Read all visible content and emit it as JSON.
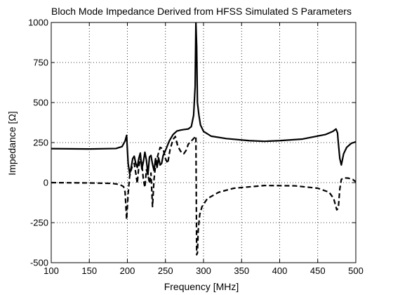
{
  "chart_data": {
    "type": "line",
    "title": "Bloch Mode Impedance Derived from HFSS Simulated S Parameters",
    "xlabel": "Frequency [MHz]",
    "ylabel": "Impedance [Ω]",
    "xlim": [
      100,
      500
    ],
    "ylim": [
      -500,
      1000
    ],
    "xticks": [
      100,
      150,
      200,
      250,
      300,
      350,
      400,
      450,
      500
    ],
    "yticks": [
      -500,
      -250,
      0,
      250,
      500,
      750,
      1000
    ],
    "grid": "dotted",
    "series": [
      {
        "style": "solid",
        "color": "#000000",
        "points": [
          [
            100,
            212
          ],
          [
            150,
            210
          ],
          [
            185,
            213
          ],
          [
            193,
            225
          ],
          [
            197,
            260
          ],
          [
            199,
            295
          ],
          [
            201,
            120
          ],
          [
            203,
            55
          ],
          [
            205,
            95
          ],
          [
            207,
            150
          ],
          [
            209,
            165
          ],
          [
            211,
            120
          ],
          [
            213,
            95
          ],
          [
            215,
            150
          ],
          [
            217,
            185
          ],
          [
            219,
            85
          ],
          [
            221,
            130
          ],
          [
            223,
            190
          ],
          [
            225,
            140
          ],
          [
            227,
            50
          ],
          [
            229,
            160
          ],
          [
            231,
            170
          ],
          [
            233,
            115
          ],
          [
            235,
            75
          ],
          [
            237,
            150
          ],
          [
            239,
            95
          ],
          [
            241,
            155
          ],
          [
            243,
            110
          ],
          [
            245,
            120
          ],
          [
            247,
            170
          ],
          [
            250,
            200
          ],
          [
            255,
            260
          ],
          [
            260,
            300
          ],
          [
            265,
            322
          ],
          [
            270,
            328
          ],
          [
            275,
            332
          ],
          [
            280,
            335
          ],
          [
            284,
            350
          ],
          [
            287,
            420
          ],
          [
            289,
            600
          ],
          [
            290,
            1000
          ],
          [
            291,
            850
          ],
          [
            292,
            500
          ],
          [
            294,
            420
          ],
          [
            296,
            360
          ],
          [
            300,
            320
          ],
          [
            310,
            290
          ],
          [
            330,
            275
          ],
          [
            360,
            262
          ],
          [
            380,
            258
          ],
          [
            400,
            262
          ],
          [
            430,
            272
          ],
          [
            460,
            300
          ],
          [
            470,
            320
          ],
          [
            474,
            335
          ],
          [
            476,
            310
          ],
          [
            477,
            250
          ],
          [
            479,
            150
          ],
          [
            481,
            110
          ],
          [
            484,
            180
          ],
          [
            488,
            220
          ],
          [
            494,
            245
          ],
          [
            500,
            255
          ]
        ]
      },
      {
        "style": "dashed",
        "color": "#000000",
        "points": [
          [
            100,
            0
          ],
          [
            150,
            -2
          ],
          [
            180,
            -5
          ],
          [
            190,
            -12
          ],
          [
            195,
            -25
          ],
          [
            197,
            -60
          ],
          [
            199,
            -230
          ],
          [
            201,
            -70
          ],
          [
            203,
            40
          ],
          [
            205,
            80
          ],
          [
            207,
            110
          ],
          [
            209,
            120
          ],
          [
            211,
            60
          ],
          [
            213,
            -5
          ],
          [
            215,
            100
          ],
          [
            217,
            150
          ],
          [
            219,
            120
          ],
          [
            221,
            20
          ],
          [
            223,
            -30
          ],
          [
            225,
            80
          ],
          [
            227,
            50
          ],
          [
            229,
            -5
          ],
          [
            231,
            60
          ],
          [
            233,
            -150
          ],
          [
            235,
            20
          ],
          [
            237,
            110
          ],
          [
            240,
            170
          ],
          [
            243,
            220
          ],
          [
            247,
            210
          ],
          [
            250,
            150
          ],
          [
            253,
            120
          ],
          [
            256,
            205
          ],
          [
            260,
            270
          ],
          [
            263,
            288
          ],
          [
            266,
            230
          ],
          [
            270,
            195
          ],
          [
            274,
            180
          ],
          [
            277,
            200
          ],
          [
            280,
            240
          ],
          [
            284,
            260
          ],
          [
            288,
            280
          ],
          [
            290,
            290
          ],
          [
            291,
            -450
          ],
          [
            292,
            -440
          ],
          [
            293,
            -300
          ],
          [
            295,
            -200
          ],
          [
            298,
            -150
          ],
          [
            305,
            -100
          ],
          [
            320,
            -60
          ],
          [
            340,
            -35
          ],
          [
            380,
            -18
          ],
          [
            420,
            -20
          ],
          [
            450,
            -35
          ],
          [
            465,
            -60
          ],
          [
            471,
            -100
          ],
          [
            475,
            -170
          ],
          [
            477,
            -160
          ],
          [
            479,
            -40
          ],
          [
            481,
            20
          ],
          [
            484,
            30
          ],
          [
            490,
            28
          ],
          [
            496,
            20
          ],
          [
            500,
            5
          ]
        ]
      }
    ]
  }
}
